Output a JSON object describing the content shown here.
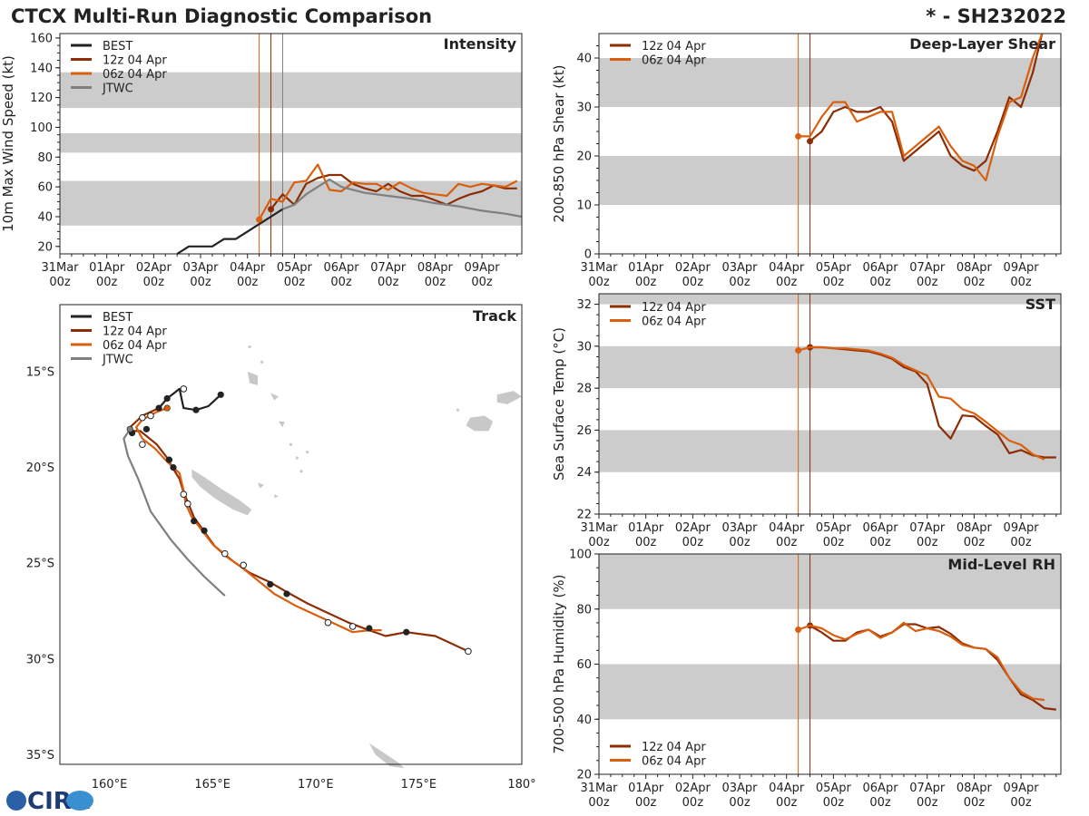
{
  "header": {
    "title": "CTCX Multi-Run Diagnostic Comparison",
    "storm_id": "* - SH232022"
  },
  "logo": {
    "text": "CIRA"
  },
  "time_axis": {
    "labels": [
      [
        "31Mar",
        "00z"
      ],
      [
        "01Apr",
        "00z"
      ],
      [
        "02Apr",
        "00z"
      ],
      [
        "03Apr",
        "00z"
      ],
      [
        "04Apr",
        "00z"
      ],
      [
        "05Apr",
        "00z"
      ],
      [
        "06Apr",
        "00z"
      ],
      [
        "07Apr",
        "00z"
      ],
      [
        "08Apr",
        "00z"
      ],
      [
        "09Apr",
        "00z"
      ]
    ],
    "range_days": [
      0,
      9.85
    ]
  },
  "colors": {
    "best": "#222222",
    "run12z": "#8c2d04",
    "run06z": "#d95f0e",
    "jtwc": "#7f7f7f",
    "band": "#cccccc",
    "land": "#c8c8c8"
  },
  "chart_data": [
    {
      "id": "intensity",
      "type": "line",
      "title": "Intensity",
      "ylabel": "10m Max Wind Speed (kt)",
      "ylim": [
        15,
        163
      ],
      "yticks": [
        20,
        40,
        60,
        80,
        100,
        120,
        140,
        160
      ],
      "bands": [
        [
          34,
          64
        ],
        [
          83,
          96
        ],
        [
          113,
          137
        ]
      ],
      "vlines": [
        {
          "t": 4.25,
          "color": "run06z"
        },
        {
          "t": 4.5,
          "color": "run12z"
        },
        {
          "t": 4.75,
          "color": "jtwc"
        }
      ],
      "legend": [
        "BEST",
        "12z 04 Apr",
        "06z 04 Apr",
        "JTWC"
      ],
      "series": [
        {
          "name": "BEST",
          "color": "best",
          "x": [
            2.5,
            2.75,
            3.0,
            3.25,
            3.5,
            3.75,
            4.0,
            4.25,
            4.5,
            4.75
          ],
          "y": [
            15,
            20,
            20,
            20,
            25,
            25,
            30,
            35,
            40,
            45
          ]
        },
        {
          "name": "12z 04 Apr",
          "color": "run12z",
          "x": [
            4.5,
            4.75,
            5.0,
            5.25,
            5.5,
            5.75,
            6.0,
            6.25,
            6.5,
            6.75,
            7.0,
            7.25,
            7.5,
            7.75,
            8.0,
            8.25,
            8.5,
            8.75,
            9.0,
            9.25,
            9.5,
            9.75
          ],
          "y": [
            45,
            55,
            48,
            62,
            66,
            68,
            68,
            62,
            59,
            57,
            62,
            57,
            54,
            54,
            51,
            48,
            52,
            55,
            57,
            61,
            59,
            59
          ]
        },
        {
          "name": "06z 04 Apr",
          "color": "run06z",
          "x": [
            4.25,
            4.5,
            4.75,
            5.0,
            5.25,
            5.5,
            5.75,
            6.0,
            6.25,
            6.5,
            6.75,
            7.0,
            7.25,
            7.5,
            7.75,
            8.0,
            8.25,
            8.5,
            8.75,
            9.0,
            9.25,
            9.5,
            9.75
          ],
          "y": [
            38,
            52,
            50,
            63,
            64,
            75,
            58,
            57,
            63,
            62,
            62,
            58,
            63,
            59,
            56,
            55,
            54,
            62,
            60,
            62,
            61,
            60,
            64
          ]
        },
        {
          "name": "JTWC",
          "color": "jtwc",
          "x": [
            4.75,
            5.0,
            5.25,
            5.5,
            5.75,
            6.0,
            6.5,
            7.0,
            7.5,
            8.0,
            8.5,
            9.0,
            9.5,
            9.85
          ],
          "y": [
            45,
            48,
            55,
            60,
            65,
            60,
            56,
            54,
            52,
            49,
            47,
            44,
            42,
            40
          ]
        }
      ]
    },
    {
      "id": "shear",
      "type": "line",
      "title": "Deep-Layer Shear",
      "ylabel": "200-850 hPa Shear (kt)",
      "ylim": [
        0,
        45
      ],
      "yticks": [
        0,
        10,
        20,
        30,
        40
      ],
      "bands": [
        [
          10,
          20
        ],
        [
          30,
          40
        ]
      ],
      "vlines": [
        {
          "t": 4.25,
          "color": "run06z"
        },
        {
          "t": 4.5,
          "color": "run12z"
        }
      ],
      "legend": [
        "12z 04 Apr",
        "06z 04 Apr"
      ],
      "series": [
        {
          "name": "12z 04 Apr",
          "color": "run12z",
          "x": [
            4.5,
            4.75,
            5.0,
            5.25,
            5.5,
            5.75,
            6.0,
            6.25,
            6.5,
            6.75,
            7.0,
            7.25,
            7.5,
            7.75,
            8.0,
            8.25,
            8.5,
            8.75,
            9.0,
            9.25,
            9.45
          ],
          "y": [
            23,
            25,
            29,
            30,
            29,
            29,
            30,
            27,
            19,
            21,
            23,
            25,
            20,
            18,
            17,
            19,
            25,
            32,
            30,
            37,
            45
          ]
        },
        {
          "name": "06z 04 Apr",
          "color": "run06z",
          "x": [
            4.25,
            4.5,
            4.75,
            5.0,
            5.25,
            5.5,
            5.75,
            6.0,
            6.25,
            6.5,
            6.75,
            7.0,
            7.25,
            7.5,
            7.75,
            8.0,
            8.25,
            8.5,
            8.75,
            9.0,
            9.25,
            9.45
          ],
          "y": [
            24,
            24,
            28,
            31,
            31,
            27,
            28,
            29,
            29,
            20,
            22,
            24,
            26,
            22,
            19,
            18,
            15,
            24,
            31,
            32,
            40,
            45
          ]
        }
      ]
    },
    {
      "id": "sst",
      "type": "line",
      "title": "SST",
      "ylabel": "Sea Surface Temp (°C)",
      "ylim": [
        22,
        32.5
      ],
      "yticks": [
        22,
        24,
        26,
        28,
        30,
        32
      ],
      "bands": [
        [
          24,
          26
        ],
        [
          28,
          30
        ],
        [
          32,
          32.5
        ]
      ],
      "vlines": [
        {
          "t": 4.25,
          "color": "run06z"
        },
        {
          "t": 4.5,
          "color": "run12z"
        }
      ],
      "legend": [
        "12z 04 Apr",
        "06z 04 Apr"
      ],
      "series": [
        {
          "name": "12z 04 Apr",
          "color": "run12z",
          "x": [
            4.5,
            4.75,
            5.0,
            5.25,
            5.5,
            5.75,
            6.0,
            6.25,
            6.5,
            6.75,
            7.0,
            7.25,
            7.5,
            7.75,
            8.0,
            8.25,
            8.5,
            8.75,
            9.0,
            9.25,
            9.5,
            9.75
          ],
          "y": [
            29.95,
            29.95,
            29.9,
            29.85,
            29.8,
            29.75,
            29.6,
            29.4,
            29.0,
            28.8,
            28.2,
            26.2,
            25.6,
            26.7,
            26.65,
            26.2,
            25.8,
            24.9,
            25.05,
            24.8,
            24.7,
            24.7
          ]
        },
        {
          "name": "06z 04 Apr",
          "color": "run06z",
          "x": [
            4.25,
            4.5,
            4.75,
            5.0,
            5.25,
            5.5,
            5.75,
            6.0,
            6.25,
            6.5,
            6.75,
            7.0,
            7.25,
            7.5,
            7.75,
            8.0,
            8.25,
            8.5,
            8.75,
            9.0,
            9.25,
            9.5
          ],
          "y": [
            29.8,
            29.95,
            29.95,
            29.9,
            29.9,
            29.85,
            29.8,
            29.65,
            29.45,
            29.1,
            28.85,
            28.6,
            27.6,
            27.5,
            27.0,
            26.8,
            26.4,
            25.95,
            25.5,
            25.3,
            24.85,
            24.6
          ]
        }
      ]
    },
    {
      "id": "rh",
      "type": "line",
      "title": "Mid-Level RH",
      "ylabel": "700-500 hPa Humidity (%)",
      "ylim": [
        20,
        100
      ],
      "yticks": [
        20,
        40,
        60,
        80,
        100
      ],
      "bands": [
        [
          40,
          60
        ],
        [
          80,
          100
        ]
      ],
      "vlines": [
        {
          "t": 4.25,
          "color": "run06z"
        },
        {
          "t": 4.5,
          "color": "run12z"
        }
      ],
      "legend": [
        "12z 04 Apr",
        "06z 04 Apr"
      ],
      "series": [
        {
          "name": "12z 04 Apr",
          "color": "run12z",
          "x": [
            4.5,
            4.75,
            5.0,
            5.25,
            5.5,
            5.75,
            6.0,
            6.25,
            6.5,
            6.75,
            7.0,
            7.25,
            7.5,
            7.75,
            8.0,
            8.25,
            8.5,
            8.75,
            9.0,
            9.25,
            9.5,
            9.75
          ],
          "y": [
            74,
            71.5,
            68.5,
            68.5,
            71.5,
            72.5,
            70,
            71.5,
            74.5,
            74.5,
            73,
            73.5,
            71,
            67.5,
            66,
            65.5,
            61.5,
            55,
            49,
            47,
            44,
            43.5
          ]
        },
        {
          "name": "06z 04 Apr",
          "color": "run06z",
          "x": [
            4.25,
            4.5,
            4.75,
            5.0,
            5.25,
            5.5,
            5.75,
            6.0,
            6.25,
            6.5,
            6.75,
            7.0,
            7.25,
            7.5,
            7.75,
            8.0,
            8.25,
            8.5,
            8.75,
            9.0,
            9.25,
            9.5
          ],
          "y": [
            72.5,
            74,
            73,
            70.5,
            69,
            71,
            72.5,
            69.5,
            71.5,
            75,
            72,
            73,
            72,
            70,
            67,
            66,
            65.5,
            62.5,
            55,
            50,
            47.5,
            47
          ]
        }
      ]
    },
    {
      "id": "track",
      "type": "scatter",
      "title": "Track",
      "xlabel": "",
      "ylabel": "",
      "xlim": [
        157.6,
        180.0
      ],
      "ylim": [
        -35.5,
        -11.5
      ],
      "xticks": [
        160,
        165,
        170,
        175,
        180
      ],
      "xtick_labels": [
        "160°E",
        "165°E",
        "170°E",
        "175°E",
        "180°"
      ],
      "yticks": [
        -15,
        -20,
        -25,
        -30,
        -35
      ],
      "ytick_labels": [
        "15°S",
        "20°S",
        "25°S",
        "30°S",
        "35°S"
      ],
      "legend": [
        "BEST",
        "12z 04 Apr",
        "06z 04 Apr",
        "JTWC"
      ],
      "series": [
        {
          "name": "BEST",
          "color": "best",
          "lon": [
            165.4,
            165.3,
            164.8,
            164.2,
            163.6,
            163.4,
            162.8,
            162.4
          ],
          "lat": [
            -16.2,
            -16.3,
            -16.8,
            -17.0,
            -16.9,
            -15.9,
            -16.4,
            -16.9
          ],
          "markers": [
            {
              "lon": 165.4,
              "lat": -16.2,
              "fill": "best"
            },
            {
              "lon": 164.2,
              "lat": -17.0,
              "fill": "best"
            },
            {
              "lon": 163.6,
              "lat": -15.9,
              "fill": "white"
            },
            {
              "lon": 162.8,
              "lat": -16.4,
              "fill": "best"
            }
          ]
        },
        {
          "name": "12z 04 Apr",
          "color": "run12z",
          "lon": [
            162.4,
            161.6,
            161.0,
            161.1,
            161.5,
            162.3,
            162.8,
            163.0,
            163.4,
            163.6,
            163.8,
            164.1,
            164.5,
            165.1,
            166.0,
            166.8,
            167.8,
            168.6,
            169.6,
            170.6,
            171.6,
            172.6,
            173.4,
            174.4,
            175.8,
            176.6,
            177.4
          ],
          "lat": [
            -16.9,
            -17.3,
            -17.9,
            -18.1,
            -18.1,
            -18.8,
            -19.5,
            -19.9,
            -20.6,
            -21.3,
            -21.8,
            -22.6,
            -23.2,
            -24.1,
            -24.9,
            -25.5,
            -26.0,
            -26.5,
            -27.1,
            -27.6,
            -28.1,
            -28.5,
            -28.8,
            -28.6,
            -28.8,
            -29.2,
            -29.6
          ],
          "markers": [
            {
              "lon": 162.4,
              "lat": -16.9,
              "fill": "best"
            },
            {
              "lon": 162.0,
              "lat": -17.3,
              "fill": "white"
            },
            {
              "lon": 161.8,
              "lat": -18.0,
              "fill": "best"
            },
            {
              "lon": 161.1,
              "lat": -18.2,
              "fill": "best"
            },
            {
              "lon": 162.9,
              "lat": -19.6,
              "fill": "best"
            },
            {
              "lon": 163.1,
              "lat": -20.0,
              "fill": "best"
            },
            {
              "lon": 164.1,
              "lat": -22.8,
              "fill": "best"
            },
            {
              "lon": 164.6,
              "lat": -23.3,
              "fill": "best"
            },
            {
              "lon": 167.8,
              "lat": -26.1,
              "fill": "best"
            },
            {
              "lon": 168.6,
              "lat": -26.6,
              "fill": "best"
            },
            {
              "lon": 172.6,
              "lat": -28.4,
              "fill": "best"
            },
            {
              "lon": 174.4,
              "lat": -28.6,
              "fill": "best"
            },
            {
              "lon": 177.4,
              "lat": -29.6,
              "fill": "white"
            }
          ]
        },
        {
          "name": "06z 04 Apr",
          "color": "run06z",
          "lon": [
            162.8,
            162.3,
            161.6,
            161.3,
            161.6,
            162.2,
            162.8,
            163.4,
            163.6,
            163.7,
            164.0,
            164.5,
            165.0,
            165.6,
            166.4,
            167.2,
            168.0,
            169.0,
            170.0,
            171.0,
            171.8,
            172.6,
            173.2
          ],
          "lat": [
            -16.9,
            -17.1,
            -17.5,
            -17.9,
            -18.5,
            -19.0,
            -19.7,
            -20.3,
            -21.2,
            -21.9,
            -22.6,
            -23.3,
            -24.0,
            -24.6,
            -25.2,
            -25.9,
            -26.6,
            -27.2,
            -27.7,
            -28.2,
            -28.6,
            -28.5,
            -28.5
          ],
          "markers": [
            {
              "lon": 162.8,
              "lat": -16.9,
              "fill": "run06z"
            },
            {
              "lon": 161.6,
              "lat": -17.4,
              "fill": "white"
            },
            {
              "lon": 161.6,
              "lat": -18.8,
              "fill": "white"
            },
            {
              "lon": 163.6,
              "lat": -21.4,
              "fill": "white"
            },
            {
              "lon": 163.8,
              "lat": -21.9,
              "fill": "white"
            },
            {
              "lon": 165.6,
              "lat": -24.5,
              "fill": "white"
            },
            {
              "lon": 166.5,
              "lat": -25.1,
              "fill": "white"
            },
            {
              "lon": 170.6,
              "lat": -28.1,
              "fill": "white"
            },
            {
              "lon": 171.8,
              "lat": -28.3,
              "fill": "white"
            }
          ]
        },
        {
          "name": "JTWC",
          "color": "jtwc",
          "lon": [
            161.0,
            160.7,
            160.9,
            161.4,
            162.0,
            163.0,
            163.8,
            164.6,
            165.6
          ],
          "lat": [
            -18.0,
            -18.5,
            -19.4,
            -20.6,
            -22.3,
            -23.8,
            -24.8,
            -25.7,
            -26.7
          ],
          "markers": [
            {
              "lon": 161.0,
              "lat": -18.0,
              "fill": "jtwc"
            }
          ]
        }
      ]
    }
  ]
}
